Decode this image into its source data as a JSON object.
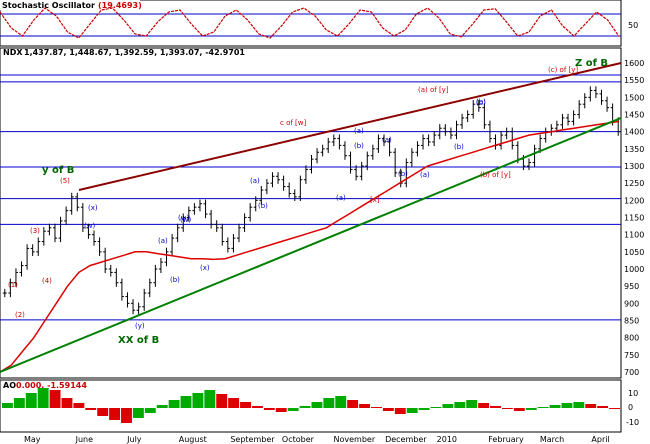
{
  "panels": {
    "stoch_title": "Stochastic Oscillator",
    "stoch_value": "(19.4693)",
    "price_title": "NDX",
    "price_values": "1,437.87, 1,448.67, 1,392.59, 1,393.07, -42.9701",
    "ao_title": "AO",
    "ao_values": "0.000, -1.59144"
  },
  "colors": {
    "blue_axis": "#0000cc",
    "price_bar": "#000000",
    "ma": "#dd0000",
    "resistance": "#8b0000",
    "support": "#008000",
    "stoch_line": "#cc0000",
    "ao_up": "#00aa00",
    "ao_down": "#dd0000",
    "label_red": "#cc0000",
    "label_blue": "#0000cc",
    "label_green": "#006600"
  },
  "chart_data": {
    "type": "ohlc",
    "price_ylim": [
      700,
      1600
    ],
    "price_ticks": [
      "1600",
      "1550",
      "1500",
      "1450",
      "1400",
      "1350",
      "1300",
      "1250",
      "1200",
      "1150",
      "1100",
      "1050",
      "1000",
      "950",
      "900",
      "850",
      "800",
      "750",
      "700"
    ],
    "horizontal_levels": [
      1565,
      1545,
      1400,
      1297,
      1205,
      1130,
      852
    ],
    "months": [
      "May",
      "June",
      "July",
      "August",
      "September",
      "October",
      "November",
      "December",
      "2010",
      "February",
      "March",
      "April"
    ],
    "closes": [
      930,
      960,
      990,
      1010,
      1060,
      1050,
      1080,
      1110,
      1120,
      1090,
      1140,
      1170,
      1210,
      1180,
      1120,
      1100,
      1080,
      1050,
      1000,
      990,
      960,
      920,
      900,
      880,
      890,
      930,
      960,
      1000,
      1020,
      1050,
      1090,
      1120,
      1150,
      1170,
      1180,
      1190,
      1160,
      1130,
      1120,
      1080,
      1060,
      1090,
      1120,
      1150,
      1180,
      1200,
      1230,
      1250,
      1270,
      1260,
      1240,
      1220,
      1210,
      1260,
      1290,
      1320,
      1340,
      1350,
      1370,
      1380,
      1360,
      1330,
      1290,
      1270,
      1300,
      1330,
      1350,
      1380,
      1370,
      1340,
      1280,
      1250,
      1310,
      1340,
      1360,
      1380,
      1370,
      1390,
      1410,
      1400,
      1390,
      1420,
      1440,
      1450,
      1480,
      1470,
      1420,
      1380,
      1360,
      1390,
      1400,
      1360,
      1320,
      1300,
      1310,
      1350,
      1380,
      1400,
      1410,
      1420,
      1440,
      1430,
      1450,
      1480,
      1500,
      1520,
      1510,
      1490,
      1470,
      1430,
      1400
    ],
    "moving_average": [
      700,
      720,
      760,
      800,
      850,
      900,
      950,
      990,
      1010,
      1020,
      1030,
      1040,
      1050,
      1050,
      1045,
      1040,
      1035,
      1030,
      1030,
      1028,
      1030,
      1040,
      1050,
      1060,
      1070,
      1080,
      1090,
      1100,
      1110,
      1120,
      1140,
      1160,
      1180,
      1200,
      1220,
      1240,
      1260,
      1280,
      1300,
      1310,
      1320,
      1330,
      1340,
      1350,
      1360,
      1370,
      1380,
      1390,
      1395,
      1400,
      1405,
      1410,
      1415,
      1420,
      1425,
      1430
    ],
    "stochastic": [
      80,
      40,
      20,
      60,
      90,
      70,
      30,
      15,
      50,
      85,
      90,
      60,
      25,
      20,
      55,
      80,
      85,
      50,
      20,
      30,
      70,
      85,
      60,
      25,
      15,
      45,
      80,
      90,
      70,
      35,
      20,
      50,
      85,
      80,
      40,
      20,
      35,
      75,
      90,
      65,
      25,
      18,
      50,
      85,
      88,
      55,
      20,
      30,
      70,
      85,
      45,
      20,
      50,
      80,
      60,
      19
    ],
    "stoch_levels": [
      75,
      25
    ],
    "stoch_ticks": [
      "50"
    ],
    "ao": [
      5,
      10,
      15,
      20,
      18,
      10,
      5,
      -2,
      -8,
      -12,
      -15,
      -10,
      -5,
      3,
      8,
      12,
      15,
      18,
      14,
      10,
      6,
      2,
      -2,
      -4,
      -3,
      2,
      6,
      10,
      12,
      8,
      4,
      1,
      -3,
      -6,
      -5,
      -2,
      1,
      4,
      6,
      8,
      5,
      2,
      -1,
      -3,
      -2,
      1,
      3,
      5,
      6,
      4,
      2,
      -1
    ],
    "ao_ticks": [
      "10",
      "0",
      "-10"
    ],
    "wave_labels": [
      {
        "text": "(1)",
        "color": "label_red"
      },
      {
        "text": "(2)",
        "color": "label_red"
      },
      {
        "text": "(3)",
        "color": "label_red"
      },
      {
        "text": "(4)",
        "color": "label_red"
      },
      {
        "text": "(5)",
        "color": "label_red"
      },
      {
        "text": "(w)",
        "color": "label_blue"
      },
      {
        "text": "(x)",
        "color": "label_blue"
      },
      {
        "text": "(w)",
        "color": "label_blue"
      },
      {
        "text": "(y)",
        "color": "label_blue"
      },
      {
        "text": "(a)",
        "color": "label_blue"
      },
      {
        "text": "(b)",
        "color": "label_blue"
      },
      {
        "text": "(x)",
        "color": "label_blue"
      },
      {
        "text": "(w)",
        "color": "label_blue"
      },
      {
        "text": "(a)",
        "color": "label_blue"
      },
      {
        "text": "(b)",
        "color": "label_blue"
      },
      {
        "text": "(a)",
        "color": "label_blue"
      },
      {
        "text": "(b)",
        "color": "label_blue"
      },
      {
        "text": "(a)",
        "color": "label_blue"
      },
      {
        "text": "(b)",
        "color": "label_blue"
      },
      {
        "text": "(a)",
        "color": "label_blue"
      },
      {
        "text": "(a)",
        "color": "label_blue"
      },
      {
        "text": "(b)",
        "color": "label_blue"
      },
      {
        "text": "(b)",
        "color": "label_blue"
      },
      {
        "text": "[x]",
        "color": "label_red"
      },
      {
        "text": "(a) of [y]",
        "color": "label_red"
      },
      {
        "text": "(b)",
        "color": "label_blue"
      },
      {
        "text": "(b) of [y]",
        "color": "label_red"
      },
      {
        "text": "(c) of [y]",
        "color": "label_red"
      },
      {
        "text": "c of [w]",
        "color": "label_red"
      }
    ],
    "big_labels": [
      {
        "text": "y of B",
        "color": "label_green"
      },
      {
        "text": "XX of B",
        "color": "label_green"
      },
      {
        "text": "Z of B",
        "color": "label_green"
      }
    ]
  }
}
